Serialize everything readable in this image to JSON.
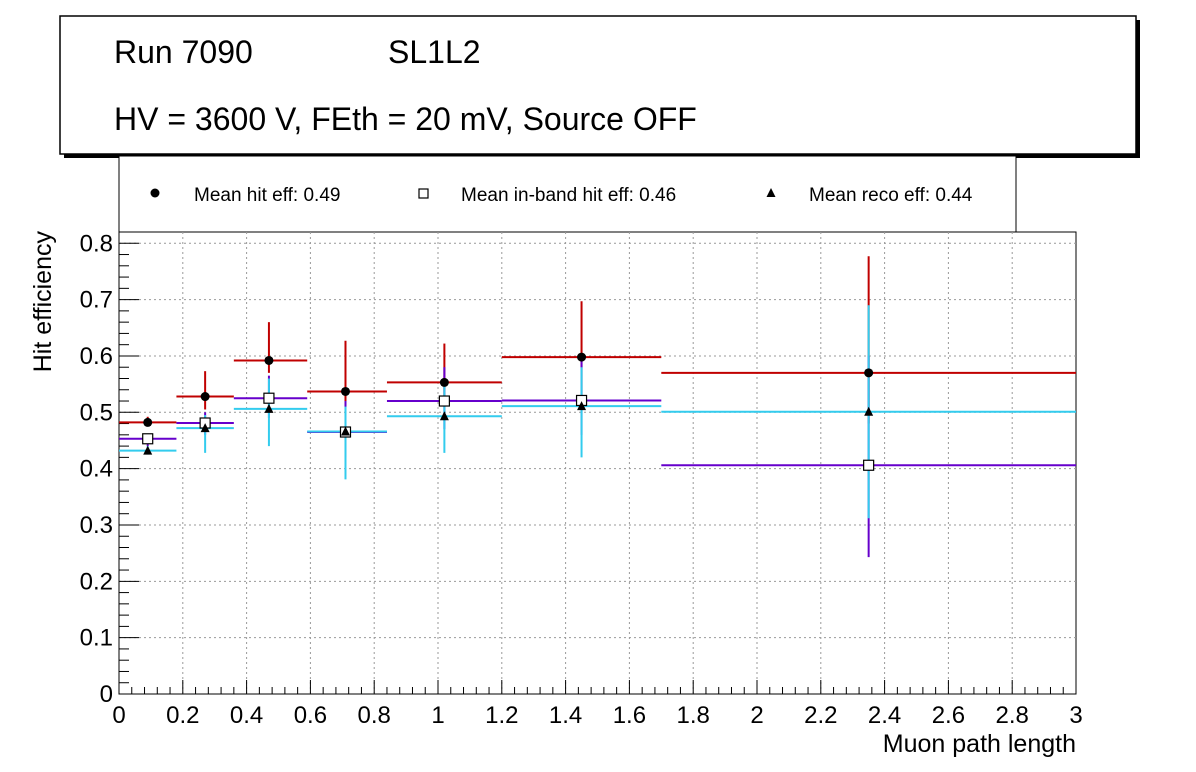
{
  "header": {
    "run": "Run 7090",
    "layer": "SL1L2",
    "conditions": "HV = 3600 V, FEth = 20 mV, Source OFF"
  },
  "legend": {
    "items": [
      {
        "label": "Mean hit  eff: 0.49",
        "marker": "filled-circle",
        "series": "hit"
      },
      {
        "label": "Mean in-band hit eff: 0.46",
        "marker": "open-square",
        "series": "inband"
      },
      {
        "label": "Mean reco eff: 0.44",
        "marker": "filled-triangle",
        "series": "reco"
      }
    ]
  },
  "chart_data": {
    "type": "scatter",
    "xlabel": "Muon path length",
    "ylabel": "Hit efficiency",
    "xlim": [
      0,
      3
    ],
    "ylim": [
      0,
      0.82
    ],
    "grid": true,
    "x_ticks": [
      "0",
      "0.2",
      "0.4",
      "0.6",
      "0.8",
      "1",
      "1.2",
      "1.4",
      "1.6",
      "1.8",
      "2",
      "2.2",
      "2.4",
      "2.6",
      "2.8",
      "3"
    ],
    "y_ticks": [
      "0",
      "0.1",
      "0.2",
      "0.3",
      "0.4",
      "0.5",
      "0.6",
      "0.7",
      "0.8"
    ],
    "series": [
      {
        "name": "Mean hit eff",
        "marker": "filled-circle",
        "color": "#c00000",
        "points": [
          {
            "x": 0.09,
            "xlo": 0.0,
            "xhi": 0.18,
            "y": 0.482,
            "ylo": 0.475,
            "yhi": 0.492
          },
          {
            "x": 0.27,
            "xlo": 0.18,
            "xhi": 0.36,
            "y": 0.528,
            "ylo": 0.505,
            "yhi": 0.573
          },
          {
            "x": 0.47,
            "xlo": 0.36,
            "xhi": 0.59,
            "y": 0.592,
            "ylo": 0.57,
            "yhi": 0.66
          },
          {
            "x": 0.71,
            "xlo": 0.59,
            "xhi": 0.84,
            "y": 0.537,
            "ylo": 0.48,
            "yhi": 0.627
          },
          {
            "x": 1.02,
            "xlo": 0.84,
            "xhi": 1.2,
            "y": 0.553,
            "ylo": 0.51,
            "yhi": 0.622
          },
          {
            "x": 1.45,
            "xlo": 1.2,
            "xhi": 1.7,
            "y": 0.598,
            "ylo": 0.53,
            "yhi": 0.697
          },
          {
            "x": 2.35,
            "xlo": 1.7,
            "xhi": 3.0,
            "y": 0.57,
            "ylo": 0.48,
            "yhi": 0.777
          }
        ]
      },
      {
        "name": "Mean in-band hit eff",
        "marker": "open-square",
        "color": "#6600cc",
        "points": [
          {
            "x": 0.09,
            "xlo": 0.0,
            "xhi": 0.18,
            "y": 0.453,
            "ylo": 0.44,
            "yhi": 0.462
          },
          {
            "x": 0.27,
            "xlo": 0.18,
            "xhi": 0.36,
            "y": 0.481,
            "ylo": 0.46,
            "yhi": 0.5
          },
          {
            "x": 0.47,
            "xlo": 0.36,
            "xhi": 0.59,
            "y": 0.525,
            "ylo": 0.49,
            "yhi": 0.565
          },
          {
            "x": 0.71,
            "xlo": 0.59,
            "xhi": 0.84,
            "y": 0.465,
            "ylo": 0.42,
            "yhi": 0.52
          },
          {
            "x": 1.02,
            "xlo": 0.84,
            "xhi": 1.2,
            "y": 0.52,
            "ylo": 0.47,
            "yhi": 0.58
          },
          {
            "x": 1.45,
            "xlo": 1.2,
            "xhi": 1.7,
            "y": 0.521,
            "ylo": 0.46,
            "yhi": 0.6
          },
          {
            "x": 2.35,
            "xlo": 1.7,
            "xhi": 3.0,
            "y": 0.406,
            "ylo": 0.243,
            "yhi": 0.6
          }
        ]
      },
      {
        "name": "Mean reco eff",
        "marker": "filled-triangle",
        "color": "#33ccee",
        "points": [
          {
            "x": 0.09,
            "xlo": 0.0,
            "xhi": 0.18,
            "y": 0.432,
            "ylo": 0.425,
            "yhi": 0.44
          },
          {
            "x": 0.27,
            "xlo": 0.18,
            "xhi": 0.36,
            "y": 0.472,
            "ylo": 0.428,
            "yhi": 0.495
          },
          {
            "x": 0.47,
            "xlo": 0.36,
            "xhi": 0.59,
            "y": 0.506,
            "ylo": 0.44,
            "yhi": 0.56
          },
          {
            "x": 0.71,
            "xlo": 0.59,
            "xhi": 0.84,
            "y": 0.466,
            "ylo": 0.381,
            "yhi": 0.51
          },
          {
            "x": 1.02,
            "xlo": 0.84,
            "xhi": 1.2,
            "y": 0.493,
            "ylo": 0.428,
            "yhi": 0.56
          },
          {
            "x": 1.45,
            "xlo": 1.2,
            "xhi": 1.7,
            "y": 0.511,
            "ylo": 0.42,
            "yhi": 0.58
          },
          {
            "x": 2.35,
            "xlo": 1.7,
            "xhi": 3.0,
            "y": 0.501,
            "ylo": 0.312,
            "yhi": 0.69
          }
        ]
      }
    ]
  }
}
